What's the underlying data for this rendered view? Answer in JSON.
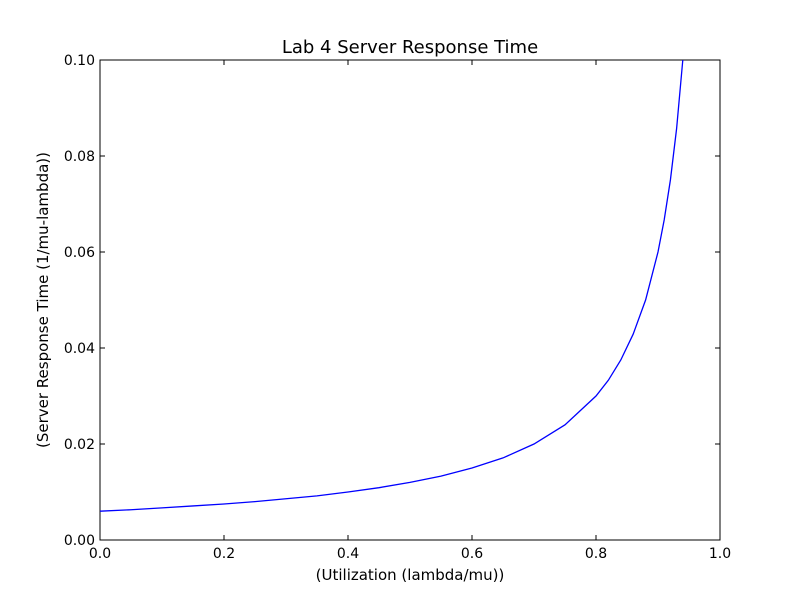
{
  "chart_data": {
    "type": "line",
    "title": "Lab 4 Server Response Time",
    "xlabel": "(Utilization (lambda/mu))",
    "ylabel": "(Server Response Time (1/mu-lambda))",
    "xlim": [
      0.0,
      1.0
    ],
    "ylim": [
      0.0,
      0.1
    ],
    "xticks": [
      "0.0",
      "0.2",
      "0.4",
      "0.6",
      "0.8",
      "1.0"
    ],
    "yticks": [
      "0.00",
      "0.02",
      "0.04",
      "0.06",
      "0.08",
      "0.10"
    ],
    "grid": false,
    "series": [
      {
        "color": "#0000ff",
        "x": [
          0.0,
          0.05,
          0.1,
          0.15,
          0.2,
          0.25,
          0.3,
          0.35,
          0.4,
          0.45,
          0.5,
          0.55,
          0.6,
          0.65,
          0.7,
          0.75,
          0.8,
          0.82,
          0.84,
          0.86,
          0.88,
          0.9,
          0.91,
          0.92,
          0.93,
          0.94
        ],
        "y": [
          0.006,
          0.0063,
          0.0067,
          0.0071,
          0.0075,
          0.008,
          0.0086,
          0.0092,
          0.01,
          0.0109,
          0.012,
          0.0133,
          0.015,
          0.0171,
          0.02,
          0.024,
          0.03,
          0.0333,
          0.0375,
          0.0429,
          0.05,
          0.06,
          0.0667,
          0.075,
          0.0857,
          0.1
        ]
      }
    ]
  }
}
